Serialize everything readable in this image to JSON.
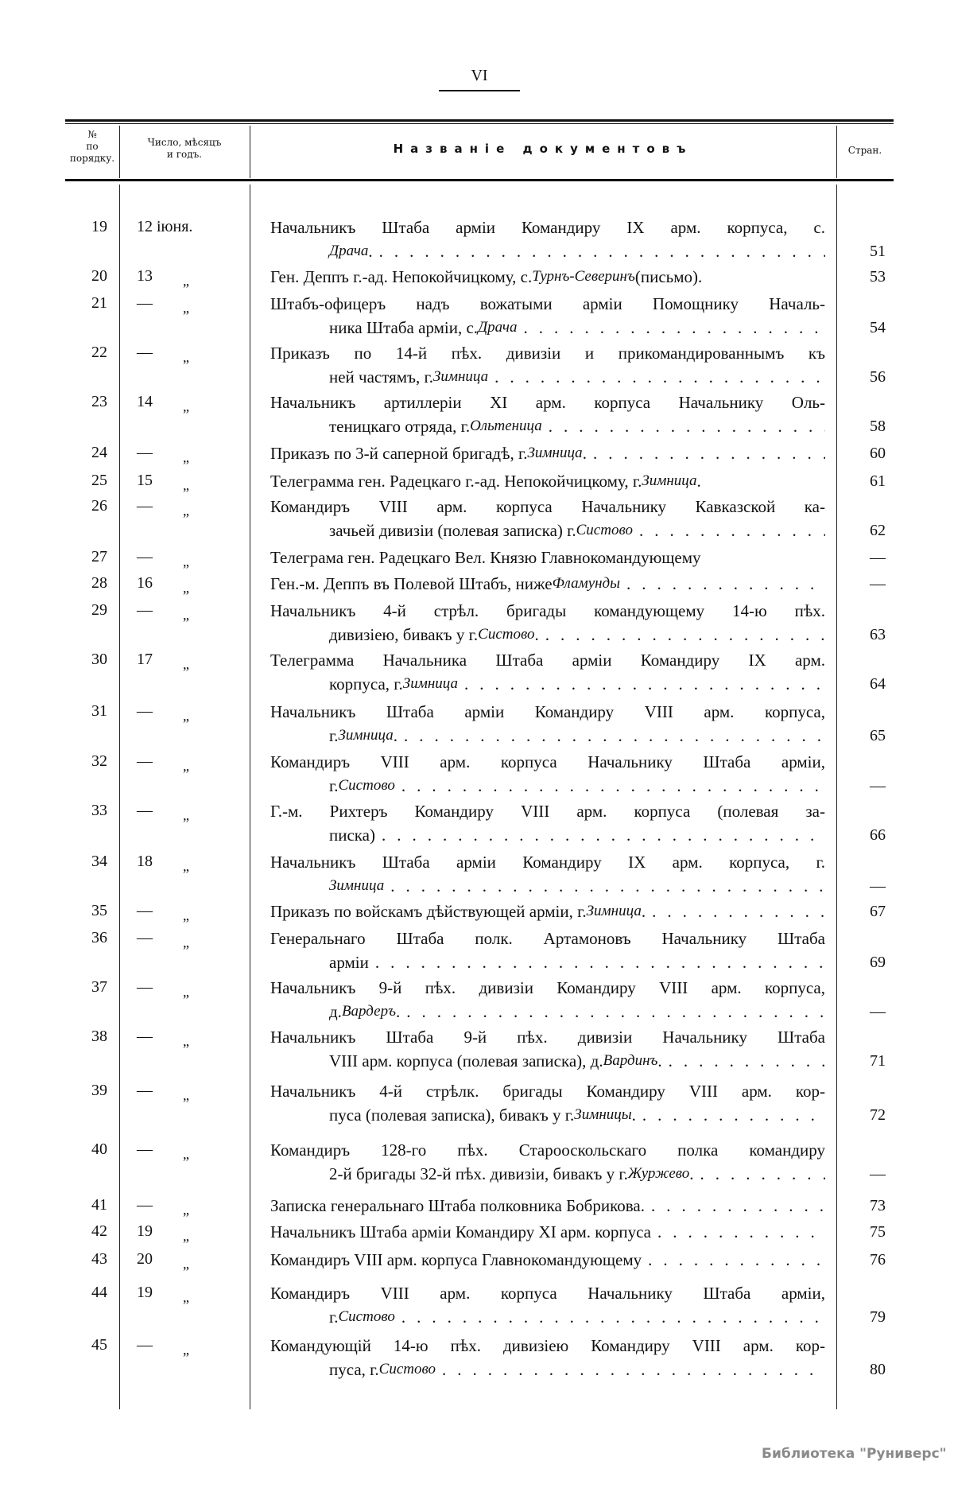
{
  "page": {
    "number": "VI"
  },
  "header": {
    "col_no": "№ по порядку.",
    "col_date": "Число, мѣсяцъ и годъ.",
    "col_title": "Названіе документовъ",
    "col_page": "Стран."
  },
  "entries": [
    {
      "n": "19",
      "d": "12 іюня.",
      "q": "",
      "l": [
        "Начальникъ Штаба арміи Командиру IX арм. корпуса, с."
      ],
      "pre": "",
      "it": "Драча",
      "post": ".",
      "p": "51"
    },
    {
      "n": "20",
      "d": "13",
      "q": "„",
      "l": [],
      "pre": "Ген. Деппъ г.-ад. Непокойчицкому, с. ",
      "it": "Турнъ-Северинъ",
      "post": " (письмо).",
      "p": "53"
    },
    {
      "n": "21",
      "d": "—",
      "q": "„",
      "l": [
        "Штабъ-офицеръ надъ вожатыми арміи Помощнику Началь-"
      ],
      "pre": "ника Штаба арміи, с. ",
      "it": "Драча",
      "post": "",
      "p": "54"
    },
    {
      "n": "22",
      "d": "—",
      "q": "„",
      "l": [
        "Приказъ по 14-й пѣх. дивизіи и прикомандированнымъ къ"
      ],
      "pre": "ней частямъ, г. ",
      "it": "Зимница",
      "post": "",
      "p": "56"
    },
    {
      "n": "23",
      "d": "14",
      "q": "„",
      "l": [
        "Начальникъ артиллеріи XI арм. корпуса Начальнику Оль-"
      ],
      "pre": "теницкаго отряда, г. ",
      "it": "Ольтеница",
      "post": "",
      "p": "58"
    },
    {
      "n": "24",
      "d": "—",
      "q": "„",
      "l": [],
      "pre": "Приказъ по 3-й саперной бригадѣ, г. ",
      "it": "Зимница",
      "post": ".",
      "p": "60"
    },
    {
      "n": "25",
      "d": "15",
      "q": "„",
      "l": [],
      "pre": "Телеграмма ген. Радецкаго г.-ад. Непокойчицкому, г. ",
      "it": "Зимница",
      "post": ".",
      "p": "61"
    },
    {
      "n": "26",
      "d": "—",
      "q": "„",
      "l": [
        "Командиръ VIII арм. корпуса Начальнику Кавказской ка-"
      ],
      "pre": "зачьей дивизіи (полевая записка) г. ",
      "it": "Систово",
      "post": "",
      "p": "62"
    },
    {
      "n": "27",
      "d": "—",
      "q": "„",
      "l": [],
      "pre": "Телеграма ген. Радецкаго Вел. Князю Главнокомандующему",
      "it": "",
      "post": "",
      "p": "—"
    },
    {
      "n": "28",
      "d": "16",
      "q": "„",
      "l": [],
      "pre": "Ген.-м. Деппъ въ Полевой Штабъ, ниже ",
      "it": "Фламунды",
      "post": "",
      "p": "—"
    },
    {
      "n": "29",
      "d": "—",
      "q": "„",
      "l": [
        "Начальникъ 4-й стрѣл. бригады командующему 14-ю пѣх."
      ],
      "pre": "дивизіею, бивакъ у г. ",
      "it": "Систово",
      "post": ".",
      "p": "63"
    },
    {
      "n": "30",
      "d": "17",
      "q": "„",
      "l": [
        "Телеграмма Начальника Штаба арміи Командиру IX арм."
      ],
      "pre": "корпуса, г. ",
      "it": "Зимница",
      "post": "",
      "p": "64"
    },
    {
      "n": "31",
      "d": "—",
      "q": "„",
      "l": [
        "Начальникъ Штаба арміи Командиру VIII арм. корпуса,"
      ],
      "pre": "г. ",
      "it": "Зимница",
      "post": ".",
      "p": "65"
    },
    {
      "n": "32",
      "d": "—",
      "q": "„",
      "l": [
        "Командиръ VIII арм. корпуса Начальнику Штаба арміи,"
      ],
      "pre": "г. ",
      "it": "Систово",
      "post": "",
      "p": "—"
    },
    {
      "n": "33",
      "d": "—",
      "q": "„",
      "l": [
        "Г.-м. Рихтеръ Командиру VIII арм. корпуса (полевая за-"
      ],
      "pre": "писка)",
      "it": "",
      "post": "",
      "p": "66"
    },
    {
      "n": "34",
      "d": "18",
      "q": "„",
      "l": [
        "Начальникъ Штаба арміи Командиру IX арм. корпуса, г."
      ],
      "pre": "",
      "it": "Зимница",
      "post": "",
      "p": "—"
    },
    {
      "n": "35",
      "d": "—",
      "q": "„",
      "l": [],
      "pre": "Приказъ по войскамъ дѣйствующей арміи, г. ",
      "it": "Зимница",
      "post": ".",
      "p": "67"
    },
    {
      "n": "36",
      "d": "—",
      "q": "„",
      "l": [
        "Генеральнаго Штаба полк. Артамоновъ Начальнику Штаба"
      ],
      "pre": "арміи",
      "it": "",
      "post": "",
      "p": "69"
    },
    {
      "n": "37",
      "d": "—",
      "q": "„",
      "l": [
        "Начальникъ 9-й пѣх. дивизіи Командиру VIII арм. корпуса,"
      ],
      "pre": "д. ",
      "it": "Вардеръ",
      "post": ".",
      "p": "—"
    },
    {
      "n": "38",
      "d": "—",
      "q": "„",
      "l": [
        "Начальникъ Штаба 9-й пѣх. дивизіи Начальнику Штаба"
      ],
      "pre": "VIII арм. корпуса (полевая записка), д. ",
      "it": "Вардинъ",
      "post": ".",
      "p": "71"
    },
    {
      "n": "39",
      "d": "—",
      "q": "„",
      "l": [
        "Начальникъ 4-й стрѣлк. бригады Командиру VIII арм. кор-"
      ],
      "pre": "пуса (полевая записка), бивакъ у г. ",
      "it": "Зимницы",
      "post": ".",
      "p": "72"
    },
    {
      "n": "40",
      "d": "—",
      "q": "„",
      "l": [
        "Командиръ 128-го пѣх. Старооскольскаго полка командиру"
      ],
      "pre": "2-й бригады 32-й пѣх. дивизіи, бивакъ у г. ",
      "it": "Журжево",
      "post": ".",
      "p": "—"
    },
    {
      "n": "41",
      "d": "—",
      "q": "„",
      "l": [],
      "pre": "Записка генеральнаго Штаба полковника Бобрикова.",
      "it": "",
      "post": "",
      "p": "73"
    },
    {
      "n": "42",
      "d": "19",
      "q": "„",
      "l": [],
      "pre": "Начальникъ Штаба арміи Командиру XI арм. корпуса",
      "it": "",
      "post": "",
      "p": "75"
    },
    {
      "n": "43",
      "d": "20",
      "q": "„",
      "l": [],
      "pre": "Командиръ VIII арм. корпуса Главнокомандующему",
      "it": "",
      "post": "",
      "p": "76"
    },
    {
      "n": "44",
      "d": "19",
      "q": "„",
      "l": [
        "Командиръ VIII арм. корпуса Начальнику Штаба арміи,"
      ],
      "pre": "г. ",
      "it": "Систово",
      "post": "",
      "p": "79"
    },
    {
      "n": "45",
      "d": "—",
      "q": "„",
      "l": [
        "Командующій 14-ю пѣх. дивизіею Командиру VIII арм. кор-"
      ],
      "pre": "пуса, г. ",
      "it": "Систово",
      "post": "",
      "p": "80"
    }
  ],
  "watermark": "Библиотека \"Руниверс\""
}
